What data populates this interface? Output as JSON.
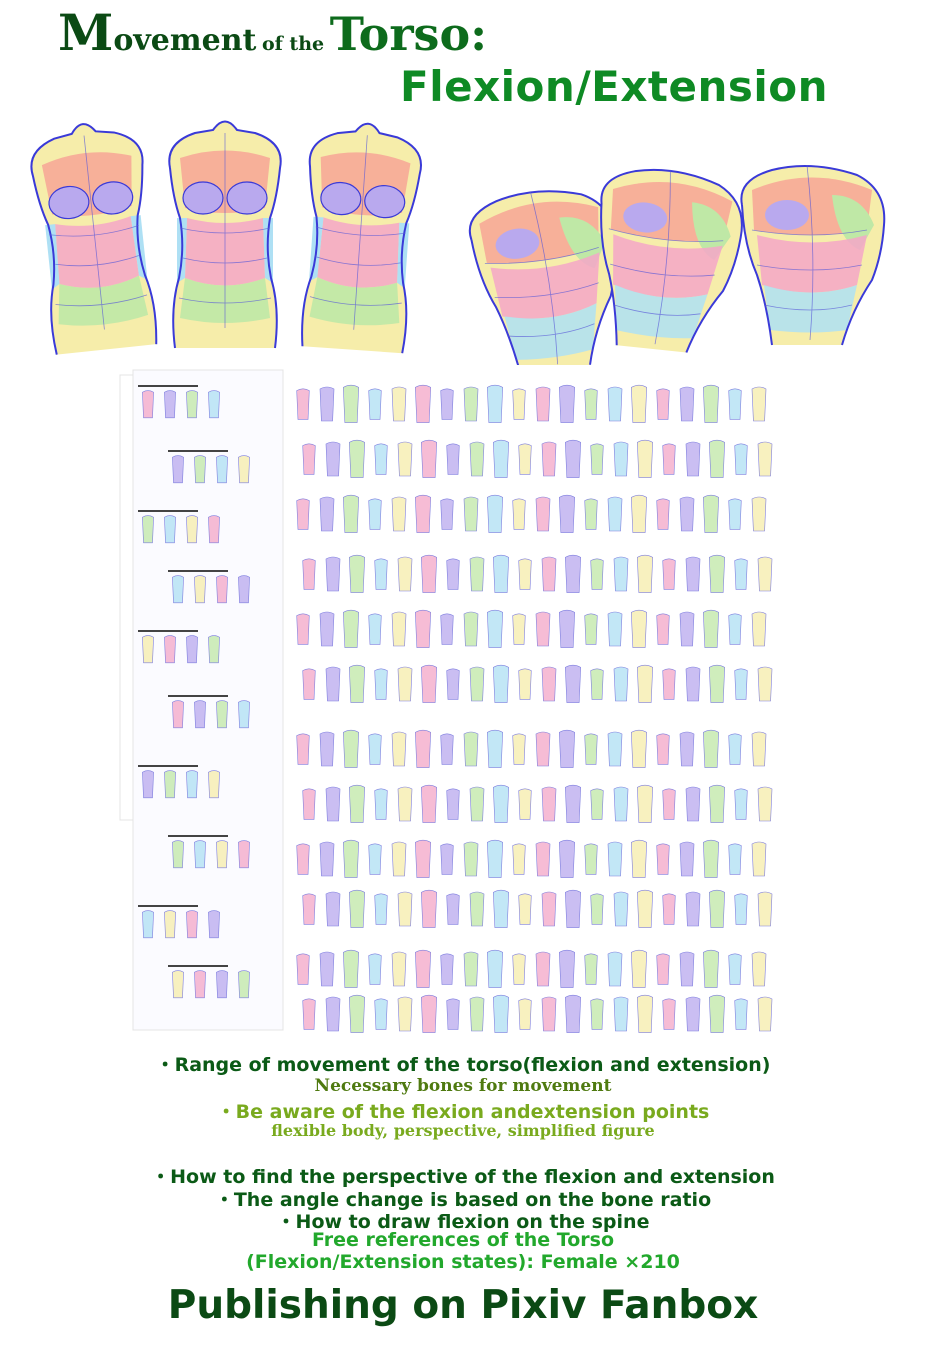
{
  "title": {
    "line1_cap": "M",
    "line1_rest": "ovement",
    "line1_of": "of the",
    "line1_torso": "Torso:",
    "line2": "Flexion/Extension"
  },
  "features": [
    "・Range of movement of the torso(flexion and extension)",
    "Necessary bones for movement",
    "・Be aware of the flexion andextension points",
    "flexible body,  perspective, simplified figure",
    "・How to find the perspective of the flexion and extension",
    "・The angle change is based on the bone ratio",
    "・How to draw flexion on the spine",
    "Free references of the Torso",
    "(Flexion/Extension states): Female ×210"
  ],
  "footer": "Publishing on Pixiv Fanbox",
  "colors": {
    "title_dark": "#0b4a14",
    "title_green": "#0e8a24",
    "outline_blue": "#3a3ad8",
    "fill_pink": "#f4a6c8",
    "fill_lavender": "#b9a9ee",
    "fill_green": "#bfe8a6",
    "fill_yellow": "#f6edaa",
    "fill_skyblue": "#aee0f4",
    "fill_salmon": "#f7a597"
  },
  "icons": [
    "torso-front-figure",
    "torso-bend-figure",
    "reference-sheet-thumbnail"
  ]
}
